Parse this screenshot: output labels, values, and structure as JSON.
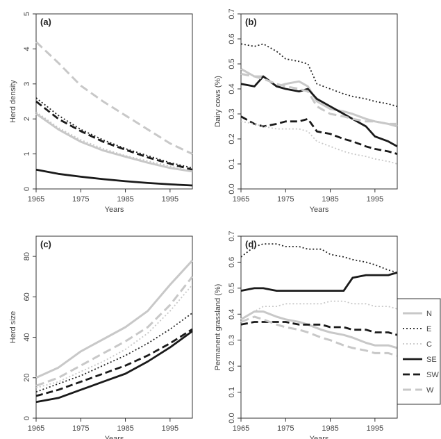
{
  "styles": {
    "N": {
      "color": "#c8c8c8",
      "dash": "",
      "width": 3
    },
    "E": {
      "color": "#222222",
      "dash": "2,3",
      "width": 1.8
    },
    "C": {
      "color": "#c8c8c8",
      "dash": "2,3",
      "width": 1.8
    },
    "SE": {
      "color": "#1a1a1a",
      "dash": "",
      "width": 2.8
    },
    "SW": {
      "color": "#1a1a1a",
      "dash": "10,5",
      "width": 2.8
    },
    "W": {
      "color": "#c8c8c8",
      "dash": "12,6",
      "width": 3
    }
  },
  "legend": {
    "entries": [
      "N",
      "E",
      "C",
      "SE",
      "SW",
      "W"
    ]
  },
  "chart_data": [
    {
      "type": "line",
      "panel_label": "(a)",
      "xlabel": "Years",
      "ylabel": "Herd density",
      "xlim": [
        1965,
        2000
      ],
      "ylim": [
        0,
        5
      ],
      "xticks": [
        1965,
        1975,
        1985,
        1995
      ],
      "yticks": [
        0,
        1,
        2,
        3,
        4,
        5
      ],
      "x": [
        1965,
        1970,
        1975,
        1980,
        1985,
        1990,
        1995,
        2000
      ],
      "series": [
        {
          "key": "W",
          "values": [
            4.2,
            3.6,
            2.95,
            2.5,
            2.1,
            1.7,
            1.3,
            1.0
          ]
        },
        {
          "key": "E",
          "values": [
            2.6,
            2.1,
            1.7,
            1.4,
            1.15,
            0.95,
            0.75,
            0.6
          ]
        },
        {
          "key": "SW",
          "values": [
            2.5,
            2.0,
            1.65,
            1.35,
            1.12,
            0.9,
            0.72,
            0.55
          ]
        },
        {
          "key": "C",
          "values": [
            2.2,
            1.75,
            1.4,
            1.15,
            0.95,
            0.8,
            0.65,
            0.5
          ]
        },
        {
          "key": "N",
          "values": [
            2.15,
            1.7,
            1.35,
            1.1,
            0.92,
            0.75,
            0.6,
            0.5
          ]
        },
        {
          "key": "SE",
          "values": [
            0.55,
            0.43,
            0.35,
            0.28,
            0.22,
            0.17,
            0.13,
            0.1
          ]
        }
      ]
    },
    {
      "type": "line",
      "panel_label": "(b)",
      "xlabel": "Years",
      "ylabel": "Dairy cows (%)",
      "xlim": [
        1965,
        2000
      ],
      "ylim": [
        0,
        0.7
      ],
      "xticks": [
        1965,
        1975,
        1985,
        1995
      ],
      "yticks": [
        0.0,
        0.1,
        0.2,
        0.3,
        0.4,
        0.5,
        0.6,
        0.7
      ],
      "x": [
        1965,
        1968,
        1970,
        1973,
        1975,
        1978,
        1980,
        1982,
        1985,
        1988,
        1990,
        1993,
        1995,
        1998,
        2000
      ],
      "series": [
        {
          "key": "E",
          "values": [
            0.58,
            0.57,
            0.58,
            0.55,
            0.52,
            0.51,
            0.5,
            0.42,
            0.4,
            0.38,
            0.37,
            0.36,
            0.35,
            0.34,
            0.33
          ]
        },
        {
          "key": "N",
          "values": [
            0.48,
            0.45,
            0.45,
            0.41,
            0.42,
            0.43,
            0.41,
            0.35,
            0.32,
            0.31,
            0.3,
            0.28,
            0.27,
            0.26,
            0.25
          ]
        },
        {
          "key": "SE",
          "values": [
            0.42,
            0.41,
            0.45,
            0.41,
            0.4,
            0.39,
            0.4,
            0.36,
            0.33,
            0.3,
            0.28,
            0.25,
            0.21,
            0.19,
            0.17
          ]
        },
        {
          "key": "W",
          "values": [
            0.46,
            0.45,
            0.44,
            0.42,
            0.41,
            0.4,
            0.39,
            0.33,
            0.3,
            0.29,
            0.28,
            0.27,
            0.27,
            0.26,
            0.26
          ]
        },
        {
          "key": "SW",
          "values": [
            0.29,
            0.26,
            0.25,
            0.26,
            0.27,
            0.27,
            0.28,
            0.23,
            0.22,
            0.2,
            0.19,
            0.17,
            0.16,
            0.15,
            0.14
          ]
        },
        {
          "key": "C",
          "values": [
            0.27,
            0.26,
            0.25,
            0.24,
            0.24,
            0.24,
            0.23,
            0.19,
            0.17,
            0.15,
            0.14,
            0.13,
            0.12,
            0.11,
            0.1
          ]
        }
      ]
    },
    {
      "type": "line",
      "panel_label": "(c)",
      "xlabel": "Years",
      "ylabel": "Herd size",
      "xlim": [
        1965,
        2000
      ],
      "ylim": [
        0,
        90
      ],
      "xticks": [
        1965,
        1975,
        1985,
        1995
      ],
      "yticks": [
        0,
        20,
        40,
        60,
        80
      ],
      "x": [
        1965,
        1970,
        1975,
        1980,
        1985,
        1990,
        1995,
        2000
      ],
      "series": [
        {
          "key": "N",
          "values": [
            20,
            25,
            33,
            39,
            45,
            53,
            66,
            78
          ]
        },
        {
          "key": "W",
          "values": [
            16,
            20,
            26,
            32,
            38,
            45,
            56,
            70
          ]
        },
        {
          "key": "C",
          "values": [
            15,
            18,
            23,
            28,
            34,
            42,
            53,
            66
          ]
        },
        {
          "key": "E",
          "values": [
            13,
            17,
            21,
            26,
            31,
            37,
            44,
            52
          ]
        },
        {
          "key": "SW",
          "values": [
            11,
            14,
            18,
            22,
            26,
            31,
            37,
            44
          ]
        },
        {
          "key": "SE",
          "values": [
            8,
            10,
            14,
            18,
            22,
            28,
            35,
            43
          ]
        }
      ]
    },
    {
      "type": "line",
      "panel_label": "(d)",
      "xlabel": "Years",
      "ylabel": "Permanent grassland (%)",
      "xlim": [
        1965,
        2000
      ],
      "ylim": [
        0,
        0.7
      ],
      "xticks": [
        1965,
        1975,
        1985,
        1995
      ],
      "yticks": [
        0.0,
        0.1,
        0.2,
        0.3,
        0.4,
        0.5,
        0.6,
        0.7
      ],
      "x": [
        1965,
        1968,
        1970,
        1973,
        1975,
        1978,
        1980,
        1983,
        1985,
        1988,
        1990,
        1993,
        1995,
        1998,
        2000
      ],
      "series": [
        {
          "key": "E",
          "values": [
            0.62,
            0.66,
            0.67,
            0.67,
            0.66,
            0.66,
            0.65,
            0.65,
            0.63,
            0.62,
            0.61,
            0.6,
            0.59,
            0.57,
            0.56
          ]
        },
        {
          "key": "SE",
          "values": [
            0.49,
            0.5,
            0.5,
            0.49,
            0.49,
            0.49,
            0.49,
            0.49,
            0.49,
            0.49,
            0.54,
            0.55,
            0.55,
            0.55,
            0.56
          ]
        },
        {
          "key": "C",
          "values": [
            0.38,
            0.41,
            0.43,
            0.43,
            0.44,
            0.44,
            0.44,
            0.44,
            0.45,
            0.45,
            0.44,
            0.44,
            0.43,
            0.43,
            0.42
          ]
        },
        {
          "key": "N",
          "values": [
            0.38,
            0.41,
            0.41,
            0.39,
            0.38,
            0.37,
            0.36,
            0.34,
            0.33,
            0.32,
            0.31,
            0.29,
            0.28,
            0.28,
            0.27
          ]
        },
        {
          "key": "SW",
          "values": [
            0.36,
            0.37,
            0.37,
            0.37,
            0.37,
            0.36,
            0.36,
            0.36,
            0.35,
            0.35,
            0.34,
            0.34,
            0.33,
            0.33,
            0.32
          ]
        },
        {
          "key": "W",
          "values": [
            0.37,
            0.39,
            0.38,
            0.36,
            0.35,
            0.34,
            0.33,
            0.31,
            0.3,
            0.28,
            0.27,
            0.26,
            0.25,
            0.25,
            0.24
          ]
        }
      ]
    }
  ]
}
